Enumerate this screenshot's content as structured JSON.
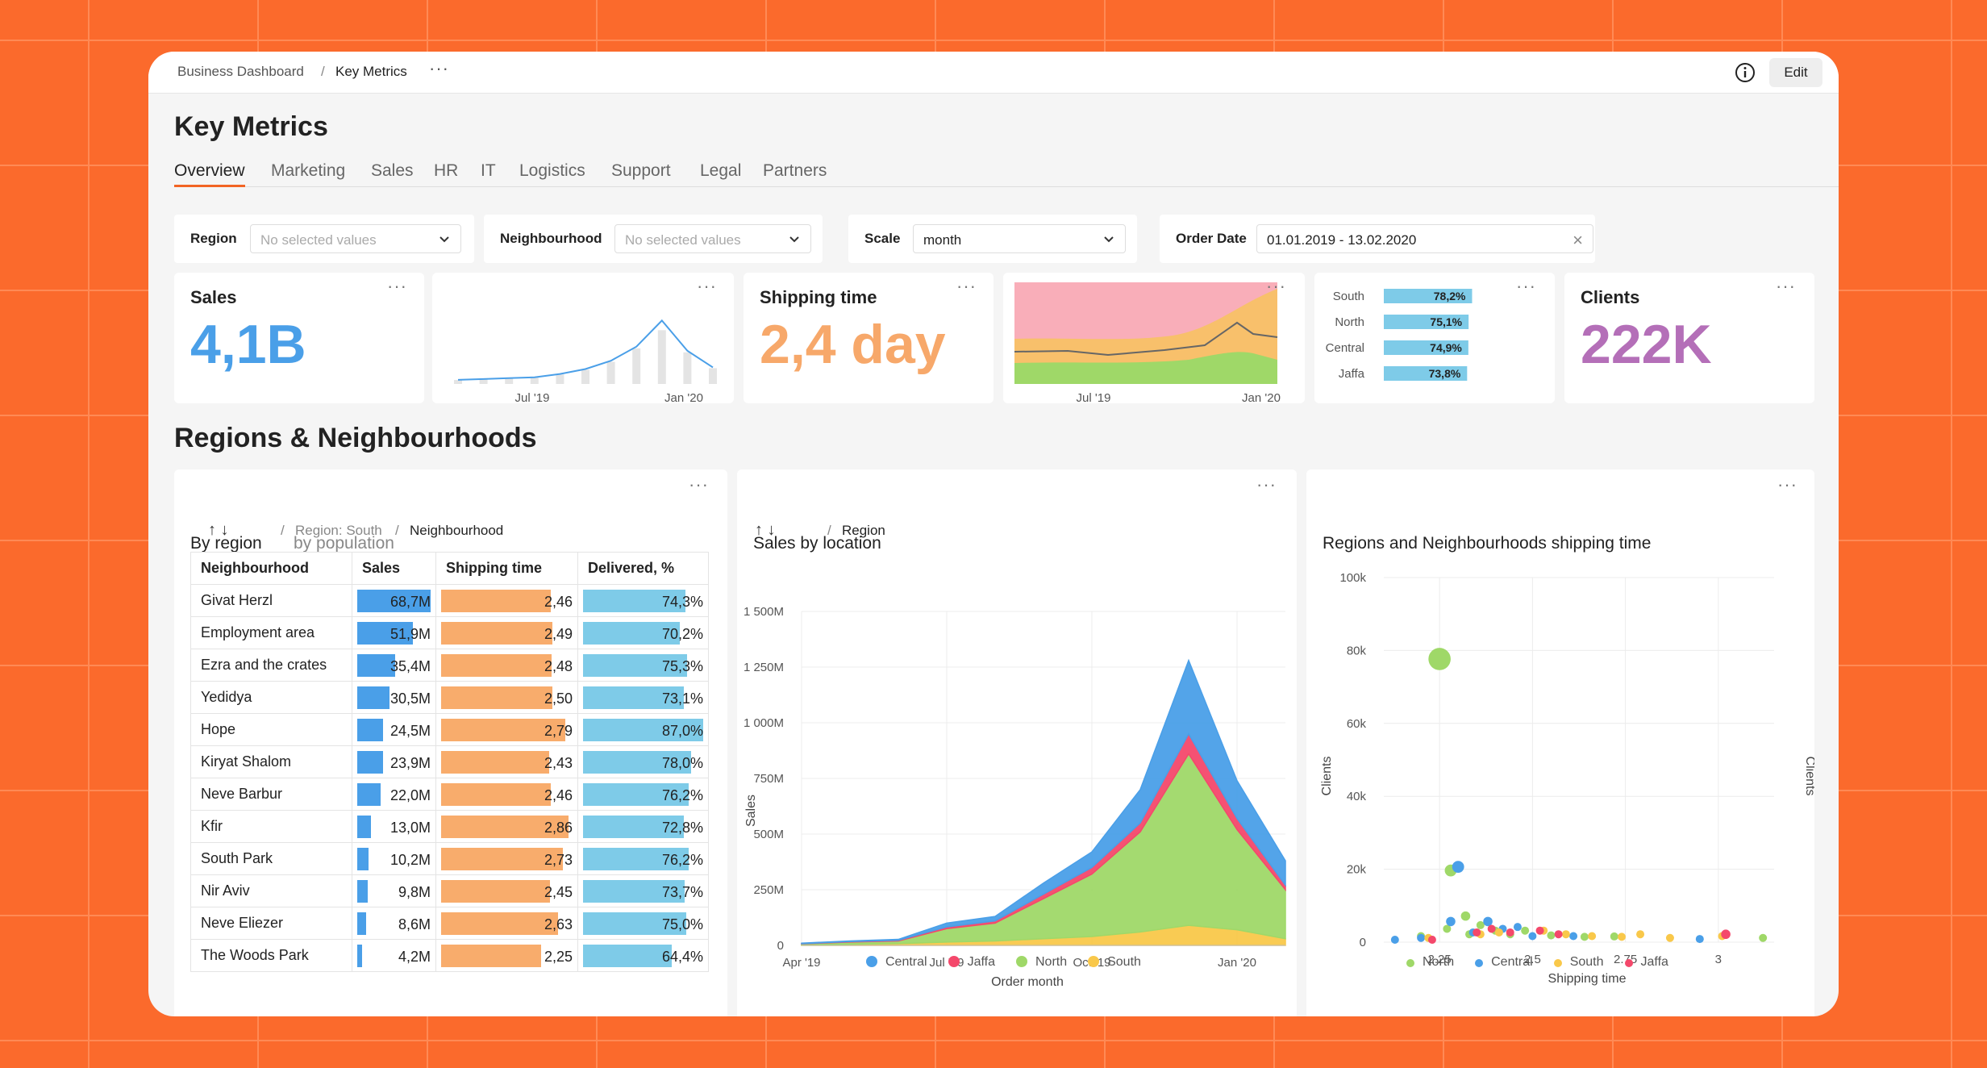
{
  "breadcrumb": {
    "parent": "Business Dashboard",
    "separator": "/",
    "current": "Key Metrics"
  },
  "topbar": {
    "more": "···",
    "edit_label": "Edit"
  },
  "page": {
    "title": "Key Metrics"
  },
  "tabs": [
    "Overview",
    "Marketing",
    "Sales",
    "HR",
    "IT",
    "Logistics",
    "Support",
    "Legal",
    "Partners"
  ],
  "filters": {
    "region": {
      "label": "Region",
      "value": "No selected values"
    },
    "neighbourhood": {
      "label": "Neighbourhood",
      "value": "No selected values"
    },
    "scale": {
      "label": "Scale",
      "value": "month"
    },
    "order_date": {
      "label": "Order Date",
      "value": "01.01.2019 - 13.02.2020"
    }
  },
  "kpis": {
    "sales": {
      "label": "Sales",
      "value": "4,1B",
      "color": "#4a9fe8"
    },
    "shipping": {
      "label": "Shipping time",
      "value": "2,4 day",
      "color": "#f7a86a"
    },
    "clients": {
      "label": "Clients",
      "value": "222K",
      "color": "#b46fb8"
    }
  },
  "dots": "···",
  "sparkline_sales": {
    "ticks": [
      "Jul '19",
      "Jan '20"
    ],
    "values": [
      0.05,
      0.06,
      0.07,
      0.08,
      0.12,
      0.18,
      0.28,
      0.45,
      0.68,
      0.4,
      0.2
    ]
  },
  "mini_area": {
    "ticks": [
      "Jul '19",
      "Jan '20"
    ],
    "colors": [
      "#f9aeb9",
      "#f8c06b",
      "#9fd868"
    ]
  },
  "mini_bars": {
    "rows": [
      {
        "label": "South",
        "value": "78,2%",
        "pct": 78.2
      },
      {
        "label": "North",
        "value": "75,1%",
        "pct": 75.1
      },
      {
        "label": "Central",
        "value": "74,9%",
        "pct": 74.9
      },
      {
        "label": "Jaffa",
        "value": "73,8%",
        "pct": 73.8
      }
    ],
    "color": "#7ecbe8"
  },
  "section": {
    "title": "Regions & Neighbourhoods"
  },
  "table_panel": {
    "tabs": [
      "By region",
      "by population"
    ],
    "arrows": "↑  ↓",
    "path": [
      "/",
      "Region: South",
      "/",
      "Neighbourhood"
    ],
    "columns": [
      "Neighbourhood",
      "Sales",
      "Shipping time",
      "Delivered, %"
    ],
    "rows": [
      {
        "name": "Givat Herzl",
        "sales": "68,7M",
        "sv": 68.7,
        "ship": "2,46",
        "shv": 2.46,
        "del": "74,3%",
        "dv": 74.3
      },
      {
        "name": "Employment area",
        "sales": "51,9M",
        "sv": 51.9,
        "ship": "2,49",
        "shv": 2.49,
        "del": "70,2%",
        "dv": 70.2
      },
      {
        "name": "Ezra and the crates",
        "sales": "35,4M",
        "sv": 35.4,
        "ship": "2,48",
        "shv": 2.48,
        "del": "75,3%",
        "dv": 75.3
      },
      {
        "name": "Yedidya",
        "sales": "30,5M",
        "sv": 30.5,
        "ship": "2,50",
        "shv": 2.5,
        "del": "73,1%",
        "dv": 73.1
      },
      {
        "name": "Hope",
        "sales": "24,5M",
        "sv": 24.5,
        "ship": "2,79",
        "shv": 2.79,
        "del": "87,0%",
        "dv": 87.0
      },
      {
        "name": "Kiryat Shalom",
        "sales": "23,9M",
        "sv": 23.9,
        "ship": "2,43",
        "shv": 2.43,
        "del": "78,0%",
        "dv": 78.0
      },
      {
        "name": "Neve Barbur",
        "sales": "22,0M",
        "sv": 22.0,
        "ship": "2,46",
        "shv": 2.46,
        "del": "76,2%",
        "dv": 76.2
      },
      {
        "name": "Kfir",
        "sales": "13,0M",
        "sv": 13.0,
        "ship": "2,86",
        "shv": 2.86,
        "del": "72,8%",
        "dv": 72.8
      },
      {
        "name": "South Park",
        "sales": "10,2M",
        "sv": 10.2,
        "ship": "2,73",
        "shv": 2.73,
        "del": "76,2%",
        "dv": 76.2
      },
      {
        "name": "Nir Aviv",
        "sales": "9,8M",
        "sv": 9.8,
        "ship": "2,45",
        "shv": 2.45,
        "del": "73,7%",
        "dv": 73.7
      },
      {
        "name": "Neve Eliezer",
        "sales": "8,6M",
        "sv": 8.6,
        "ship": "2,63",
        "shv": 2.63,
        "del": "75,0%",
        "dv": 75.0
      },
      {
        "name": "The Woods Park",
        "sales": "4,2M",
        "sv": 4.2,
        "ship": "2,25",
        "shv": 2.25,
        "del": "64,4%",
        "dv": 64.4
      }
    ],
    "colors": {
      "sales": "#4a9fe8",
      "ship": "#f8ac6c",
      "del": "#7ecbe8"
    }
  },
  "area_panel": {
    "title": "Sales by location",
    "arrows": "↑  ↓",
    "path": [
      "/",
      "Region"
    ]
  },
  "scatter_panel": {
    "title": "Regions and Neighbourhoods shipping time"
  },
  "chart_data": [
    {
      "type": "area",
      "title": "Sales by location",
      "xlabel": "Order month",
      "ylabel": "Sales",
      "ylim": [
        0,
        1500
      ],
      "yticks": [
        "0",
        "250M",
        "500M",
        "750M",
        "1 000M",
        "1 250M",
        "1 500M"
      ],
      "xticks": [
        "Apr '19",
        "Jul '19",
        "Oct '19",
        "Jan '20"
      ],
      "stacked": true,
      "x": [
        "2019-04",
        "2019-05",
        "2019-06",
        "2019-07",
        "2019-08",
        "2019-09",
        "2019-10",
        "2019-11",
        "2019-12",
        "2020-01",
        "2020-02"
      ],
      "series": [
        {
          "name": "South",
          "color": "#f9c84a",
          "values": [
            2,
            5,
            8,
            15,
            20,
            30,
            40,
            60,
            90,
            70,
            30
          ]
        },
        {
          "name": "North",
          "color": "#9fd868",
          "values": [
            5,
            10,
            12,
            60,
            80,
            180,
            280,
            450,
            770,
            450,
            220
          ]
        },
        {
          "name": "Jaffa",
          "color": "#f4486b",
          "values": [
            1,
            2,
            3,
            8,
            10,
            20,
            30,
            40,
            90,
            50,
            20
          ]
        },
        {
          "name": "Central",
          "color": "#4a9fe8",
          "values": [
            2,
            3,
            4,
            17,
            20,
            50,
            70,
            150,
            330,
            170,
            110
          ]
        }
      ],
      "legend_order": [
        "Central",
        "Jaffa",
        "North",
        "South"
      ]
    },
    {
      "type": "scatter",
      "title": "Regions and Neighbourhoods shipping time",
      "xlabel": "Shipping time",
      "ylabel": "Clients",
      "ylabel_right": "Clients",
      "xlim": [
        2.1,
        3.15
      ],
      "ylim": [
        0,
        100000
      ],
      "xticks": [
        "2.25",
        "2.5",
        "2.75",
        "3"
      ],
      "yticks": [
        "0",
        "20k",
        "40k",
        "60k",
        "80k",
        "100k"
      ],
      "series": [
        {
          "name": "North",
          "color": "#9fd868",
          "points": [
            [
              2.25,
              77000,
              16
            ],
            [
              2.28,
              19000,
              8
            ],
            [
              2.32,
              6500,
              6
            ],
            [
              2.27,
              3000,
              5
            ],
            [
              2.36,
              4000,
              5
            ],
            [
              2.4,
              2500,
              5
            ],
            [
              2.44,
              1500,
              5
            ],
            [
              2.55,
              1200,
              5
            ],
            [
              2.64,
              800,
              5
            ],
            [
              2.72,
              900,
              5
            ],
            [
              3.12,
              500,
              5
            ],
            [
              2.2,
              1000,
              5
            ],
            [
              2.48,
              2500,
              5
            ],
            [
              2.33,
              1500,
              5
            ]
          ]
        },
        {
          "name": "Central",
          "color": "#4a9fe8",
          "points": [
            [
              2.3,
              20000,
              8
            ],
            [
              2.28,
              5000,
              6
            ],
            [
              2.38,
              5000,
              6
            ],
            [
              2.46,
              3500,
              5
            ],
            [
              2.13,
              0,
              5
            ],
            [
              2.34,
              2000,
              5
            ],
            [
              2.42,
              3000,
              5
            ],
            [
              2.5,
              1000,
              5
            ],
            [
              2.61,
              1000,
              5
            ],
            [
              2.95,
              200,
              5
            ],
            [
              2.2,
              500,
              5
            ]
          ]
        },
        {
          "name": "South",
          "color": "#f9c84a",
          "points": [
            [
              2.22,
              500,
              5
            ],
            [
              2.36,
              1500,
              5
            ],
            [
              2.41,
              2000,
              5
            ],
            [
              2.53,
              2500,
              5
            ],
            [
              2.59,
              1500,
              5
            ],
            [
              2.66,
              1000,
              5
            ],
            [
              2.74,
              800,
              5
            ],
            [
              2.79,
              1500,
              5
            ],
            [
              2.87,
              500,
              5
            ],
            [
              3.01,
              1000,
              5
            ]
          ]
        },
        {
          "name": "Jaffa",
          "color": "#f4486b",
          "points": [
            [
              2.23,
              0,
              5
            ],
            [
              2.35,
              2000,
              5
            ],
            [
              2.39,
              3000,
              5
            ],
            [
              2.44,
              2000,
              5
            ],
            [
              2.52,
              2500,
              5
            ],
            [
              2.57,
              1500,
              5
            ],
            [
              3.02,
              1500,
              6
            ]
          ]
        }
      ],
      "legend_order": [
        "North",
        "Central",
        "South",
        "Jaffa"
      ]
    }
  ]
}
